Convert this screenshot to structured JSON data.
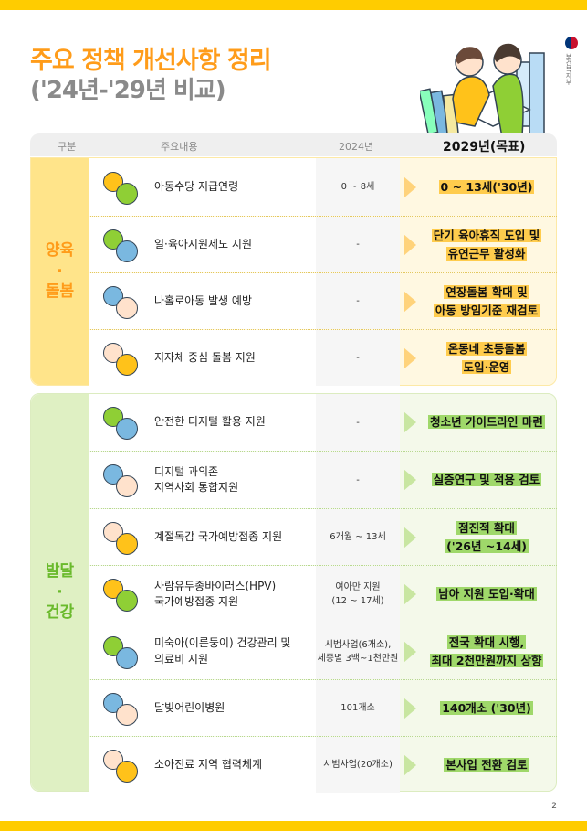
{
  "title": {
    "line1": "주요 정책 개선사항 정리",
    "line2": "('24년-'29년 비교)"
  },
  "logo": {
    "text": "보건복지부"
  },
  "colors": {
    "accent_yellow": "#ffcc00",
    "title_orange": "#ff9c1a",
    "green": "#6aba2c"
  },
  "header": {
    "category": "구분",
    "content": "주요내용",
    "y2024": "2024년",
    "y2029": "2029년(목표)"
  },
  "groups": [
    {
      "category": "양육\n·\n돌봄",
      "rows": [
        {
          "icon": "child-allowance-icon",
          "content": "아동수당 지급연령",
          "y2024": "0 ~ 8세",
          "y2029": "0 ~ 13세('30년)"
        },
        {
          "icon": "parents-icon",
          "content": "일·육아지원제도 지원",
          "y2024": "-",
          "y2029": "단기 육아휴직 도입 및\n유연근무 활성화"
        },
        {
          "icon": "home-child-icon",
          "content": "나홀로아동 발생 예방",
          "y2024": "-",
          "y2029": "연장돌봄 확대 및\n아동 방임기준 재검토"
        },
        {
          "icon": "local-map-icon",
          "content": "지자체 중심 돌봄 지원",
          "y2024": "-",
          "y2029": "온동네 초등돌봄\n도입·운영"
        }
      ]
    },
    {
      "category": "발달\n·\n건강",
      "rows": [
        {
          "icon": "digital-monitor-icon",
          "content": "안전한 디지털 활용 지원",
          "y2024": "-",
          "y2029": "청소년 가이드라인 마련"
        },
        {
          "icon": "digital-device-icon",
          "content": "디지털 과의존\n지역사회 통합지원",
          "y2024": "-",
          "y2029": "실증연구 및 적용 검토"
        },
        {
          "icon": "syringe-icon",
          "content": "계절독감 국가예방접종 지원",
          "y2024": "6개월 ~ 13세",
          "y2029": "점진적 확대\n('26년 ~14세)"
        },
        {
          "icon": "virus-shield-icon",
          "content": "사람유두종바이러스(HPV)\n국가예방접종 지원",
          "y2024": "여아만 지원\n(12 ~ 17세)",
          "y2029": "남아 지원 도입·확대"
        },
        {
          "icon": "baby-coins-icon",
          "content": "미숙아(이른둥이) 건강관리 및\n의료비 지원",
          "y2024": "시범사업(6개소),\n체중별 3백~1천만원",
          "y2029": "전국 확대 시행,\n최대 2천만원까지 상향"
        },
        {
          "icon": "night-hospital-icon",
          "content": "달빛어린이병원",
          "y2024": "101개소",
          "y2029": "140개소 ('30년)"
        },
        {
          "icon": "doctor-child-icon",
          "content": "소아진료 지역 협력체계",
          "y2024": "시범사업(20개소)",
          "y2029": "본사업 전환 검토"
        }
      ]
    }
  ],
  "page_number": "2"
}
